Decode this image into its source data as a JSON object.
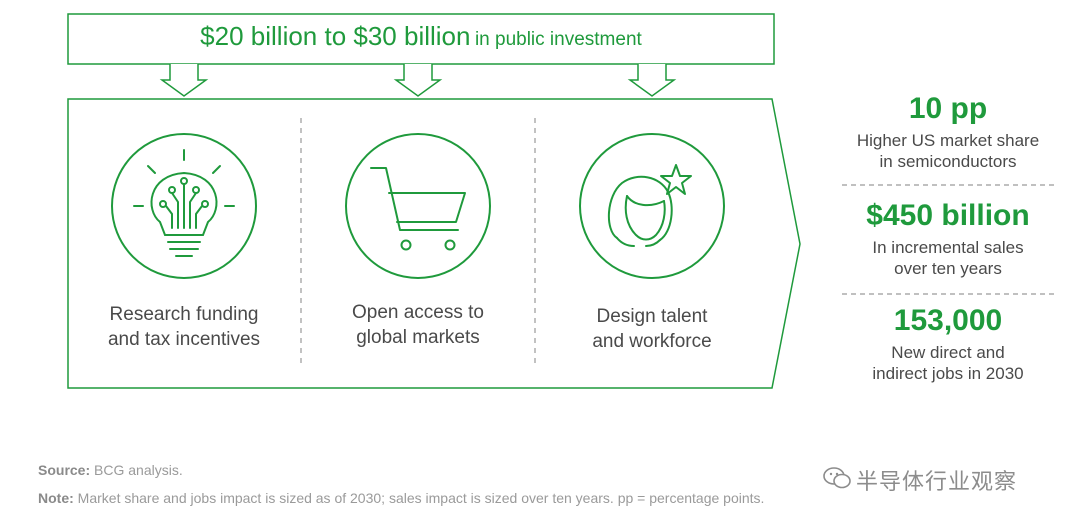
{
  "headline": {
    "amount": "$20 billion to $30 billion",
    "suffix": "in public investment"
  },
  "pillars": [
    {
      "icon": "lightbulb-circuit-icon",
      "label_line1": "Research funding",
      "label_line2": "and tax incentives"
    },
    {
      "icon": "shopping-cart-icon",
      "label_line1": "Open access to",
      "label_line2": "global markets"
    },
    {
      "icon": "person-star-icon",
      "label_line1": "Design talent",
      "label_line2": "and workforce"
    }
  ],
  "impacts": [
    {
      "value": "10 pp",
      "desc_line1": "Higher US market share",
      "desc_line2": "in semiconductors"
    },
    {
      "value": "$450 billion",
      "desc_line1": "In incremental sales",
      "desc_line2": "over ten years"
    },
    {
      "value": "153,000",
      "desc_line1": "New direct and",
      "desc_line2": "indirect jobs in 2030"
    }
  ],
  "footnotes": {
    "source_label": "Source:",
    "source_text": "BCG analysis.",
    "note_label": "Note:",
    "note_text": "Market share and jobs impact is sized as of 2030; sales impact is sized over ten years. pp = percentage points."
  },
  "watermark": {
    "text": "半导体行业观察"
  },
  "colors": {
    "accent": "#1f9a3c",
    "text": "#4a4a4a",
    "muted": "#9a9a9a"
  }
}
